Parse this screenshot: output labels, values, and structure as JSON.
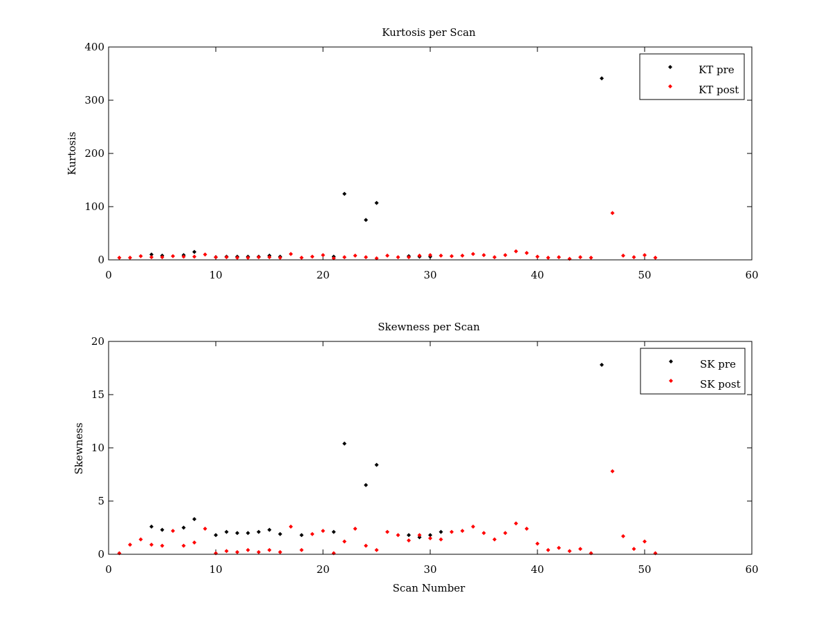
{
  "chart_data": [
    {
      "type": "scatter",
      "title": "Kurtosis per Scan",
      "xlabel": "",
      "ylabel": "Kurtosis",
      "xlim": [
        0,
        60
      ],
      "ylim": [
        0,
        400
      ],
      "xticks": [
        0,
        10,
        20,
        30,
        40,
        50,
        60
      ],
      "yticks": [
        0,
        100,
        200,
        300,
        400
      ],
      "grid": false,
      "legend_position": "top-right",
      "series": [
        {
          "name": "KT pre",
          "color": "#000000",
          "marker": "diamond",
          "points": [
            [
              4,
              10
            ],
            [
              5,
              8
            ],
            [
              7,
              9
            ],
            [
              8,
              15
            ],
            [
              10,
              5
            ],
            [
              11,
              6
            ],
            [
              12,
              6
            ],
            [
              13,
              6
            ],
            [
              14,
              6
            ],
            [
              15,
              8
            ],
            [
              16,
              6
            ],
            [
              21,
              6
            ],
            [
              22,
              124
            ],
            [
              24,
              75
            ],
            [
              25,
              107
            ],
            [
              28,
              7
            ],
            [
              29,
              6
            ],
            [
              30,
              6
            ],
            [
              46,
              341
            ]
          ]
        },
        {
          "name": "KT post",
          "color": "#ff0000",
          "marker": "diamond",
          "points": [
            [
              1,
              4
            ],
            [
              2,
              4
            ],
            [
              3,
              7
            ],
            [
              4,
              5
            ],
            [
              5,
              5
            ],
            [
              6,
              7
            ],
            [
              7,
              6
            ],
            [
              8,
              6
            ],
            [
              9,
              10
            ],
            [
              10,
              5
            ],
            [
              11,
              5
            ],
            [
              12,
              4
            ],
            [
              13,
              4
            ],
            [
              14,
              5
            ],
            [
              15,
              5
            ],
            [
              16,
              4
            ],
            [
              17,
              11
            ],
            [
              18,
              4
            ],
            [
              19,
              6
            ],
            [
              20,
              9
            ],
            [
              21,
              3
            ],
            [
              22,
              5
            ],
            [
              23,
              8
            ],
            [
              24,
              5
            ],
            [
              25,
              3
            ],
            [
              26,
              8
            ],
            [
              27,
              5
            ],
            [
              28,
              5
            ],
            [
              29,
              8
            ],
            [
              30,
              9
            ],
            [
              31,
              8
            ],
            [
              32,
              7
            ],
            [
              33,
              8
            ],
            [
              34,
              11
            ],
            [
              35,
              9
            ],
            [
              36,
              5
            ],
            [
              37,
              9
            ],
            [
              38,
              16
            ],
            [
              39,
              13
            ],
            [
              40,
              6
            ],
            [
              41,
              4
            ],
            [
              42,
              5
            ],
            [
              43,
              2
            ],
            [
              44,
              5
            ],
            [
              45,
              4
            ],
            [
              47,
              88
            ],
            [
              48,
              8
            ],
            [
              49,
              5
            ],
            [
              50,
              9
            ],
            [
              51,
              4
            ]
          ]
        }
      ]
    },
    {
      "type": "scatter",
      "title": "Skewness per Scan",
      "xlabel": "Scan Number",
      "ylabel": "Skewness",
      "xlim": [
        0,
        60
      ],
      "ylim": [
        0,
        20
      ],
      "xticks": [
        0,
        10,
        20,
        30,
        40,
        50,
        60
      ],
      "yticks": [
        0,
        5,
        10,
        15,
        20
      ],
      "grid": false,
      "legend_position": "top-right",
      "series": [
        {
          "name": "SK pre",
          "color": "#000000",
          "marker": "diamond",
          "points": [
            [
              4,
              2.6
            ],
            [
              5,
              2.3
            ],
            [
              7,
              2.5
            ],
            [
              8,
              3.3
            ],
            [
              10,
              1.8
            ],
            [
              11,
              2.1
            ],
            [
              12,
              2.0
            ],
            [
              13,
              2.0
            ],
            [
              14,
              2.1
            ],
            [
              15,
              2.3
            ],
            [
              16,
              1.9
            ],
            [
              18,
              1.8
            ],
            [
              21,
              2.1
            ],
            [
              22,
              10.4
            ],
            [
              24,
              6.5
            ],
            [
              25,
              8.4
            ],
            [
              28,
              1.8
            ],
            [
              29,
              1.6
            ],
            [
              30,
              1.8
            ],
            [
              31,
              2.1
            ],
            [
              46,
              17.8
            ]
          ]
        },
        {
          "name": "SK post",
          "color": "#ff0000",
          "marker": "diamond",
          "points": [
            [
              1,
              0.1
            ],
            [
              2,
              0.9
            ],
            [
              3,
              1.4
            ],
            [
              4,
              0.9
            ],
            [
              5,
              0.8
            ],
            [
              6,
              2.2
            ],
            [
              7,
              0.8
            ],
            [
              8,
              1.1
            ],
            [
              9,
              2.4
            ],
            [
              10,
              0.1
            ],
            [
              11,
              0.3
            ],
            [
              12,
              0.2
            ],
            [
              13,
              0.4
            ],
            [
              14,
              0.2
            ],
            [
              15,
              0.4
            ],
            [
              16,
              0.2
            ],
            [
              17,
              2.6
            ],
            [
              18,
              0.4
            ],
            [
              19,
              1.9
            ],
            [
              20,
              2.2
            ],
            [
              21,
              0.1
            ],
            [
              22,
              1.2
            ],
            [
              23,
              2.4
            ],
            [
              24,
              0.8
            ],
            [
              25,
              0.4
            ],
            [
              26,
              2.1
            ],
            [
              27,
              1.8
            ],
            [
              28,
              1.3
            ],
            [
              29,
              1.8
            ],
            [
              30,
              1.5
            ],
            [
              31,
              1.4
            ],
            [
              32,
              2.1
            ],
            [
              33,
              2.2
            ],
            [
              34,
              2.6
            ],
            [
              35,
              2.0
            ],
            [
              36,
              1.4
            ],
            [
              37,
              2.0
            ],
            [
              38,
              2.9
            ],
            [
              39,
              2.4
            ],
            [
              40,
              1.0
            ],
            [
              41,
              0.4
            ],
            [
              42,
              0.6
            ],
            [
              43,
              0.3
            ],
            [
              44,
              0.5
            ],
            [
              45,
              0.1
            ],
            [
              47,
              7.8
            ],
            [
              48,
              1.7
            ],
            [
              49,
              0.5
            ],
            [
              50,
              1.2
            ],
            [
              51,
              0.1
            ]
          ]
        }
      ]
    }
  ]
}
